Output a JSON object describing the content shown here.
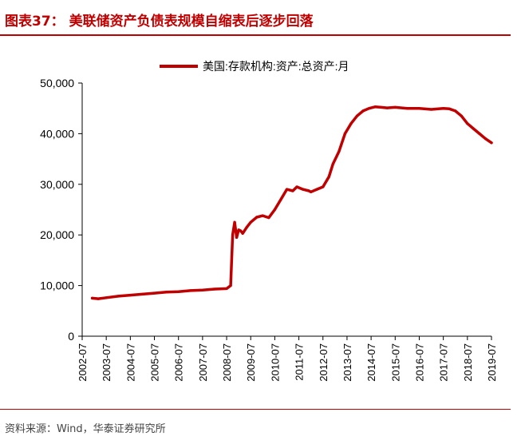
{
  "header": {
    "title": "图表37：  美联储资产负债表规模自缩表后逐步回落"
  },
  "source": {
    "text": "资料来源：Wind，华泰证券研究所"
  },
  "colors": {
    "accent": "#c00000",
    "series": "#c00000"
  },
  "chart_data": {
    "type": "line",
    "title": "",
    "xlabel": "",
    "ylabel": "",
    "ylim": [
      0,
      50000
    ],
    "yticks": [
      "0",
      "10,000",
      "20,000",
      "30,000",
      "40,000",
      "50,000"
    ],
    "xticks": [
      "2002-07",
      "2003-07",
      "2004-07",
      "2005-07",
      "2006-07",
      "2007-07",
      "2008-07",
      "2009-07",
      "2010-07",
      "2011-07",
      "2012-07",
      "2013-07",
      "2014-07",
      "2015-07",
      "2016-07",
      "2017-07",
      "2018-07",
      "2019-07"
    ],
    "legend": {
      "placement": "top-center",
      "label": "美国:存款机构:资产:总资产:月"
    },
    "grid": false,
    "series": [
      {
        "name": "美国:存款机构:资产:总资产:月",
        "x": [
          "2002-12",
          "2003-03",
          "2003-07",
          "2004-01",
          "2004-07",
          "2005-01",
          "2005-07",
          "2006-01",
          "2006-07",
          "2007-01",
          "2007-07",
          "2008-01",
          "2008-07",
          "2008-09",
          "2008-10",
          "2008-11",
          "2008-12",
          "2009-01",
          "2009-02",
          "2009-03",
          "2009-05",
          "2009-07",
          "2009-10",
          "2010-01",
          "2010-04",
          "2010-07",
          "2010-10",
          "2011-01",
          "2011-04",
          "2011-06",
          "2011-09",
          "2011-12",
          "2012-01",
          "2012-04",
          "2012-07",
          "2012-10",
          "2012-12",
          "2013-03",
          "2013-06",
          "2013-09",
          "2013-12",
          "2014-03",
          "2014-06",
          "2014-09",
          "2014-12",
          "2015-03",
          "2015-07",
          "2016-01",
          "2016-07",
          "2017-01",
          "2017-07",
          "2017-10",
          "2018-01",
          "2018-04",
          "2018-07",
          "2018-10",
          "2019-01",
          "2019-04",
          "2019-07"
        ],
        "values": [
          7500,
          7400,
          7600,
          7900,
          8100,
          8300,
          8500,
          8700,
          8800,
          9000,
          9100,
          9300,
          9400,
          10000,
          20000,
          22500,
          19500,
          21000,
          20800,
          20300,
          21500,
          22500,
          23500,
          23800,
          23400,
          25000,
          27000,
          29000,
          28700,
          29500,
          29000,
          28700,
          28500,
          29000,
          29500,
          31500,
          34000,
          36500,
          40000,
          42000,
          43500,
          44500,
          45000,
          45300,
          45200,
          45100,
          45200,
          45000,
          45000,
          44800,
          45000,
          44900,
          44500,
          43500,
          42000,
          41000,
          40000,
          39000,
          38200
        ]
      }
    ]
  }
}
